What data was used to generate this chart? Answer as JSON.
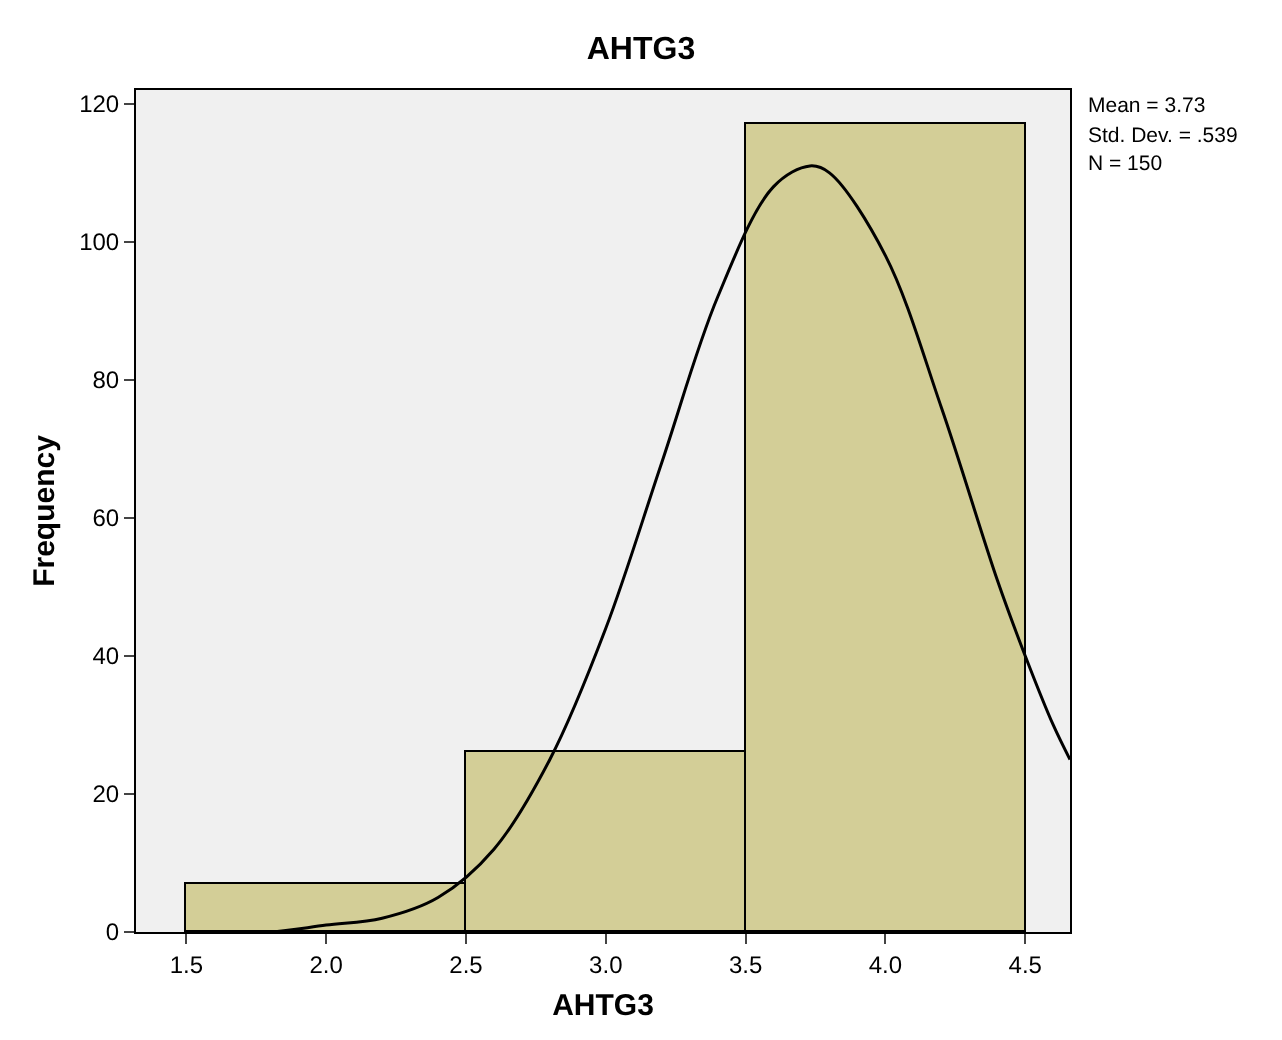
{
  "chart_data": {
    "type": "histogram",
    "title": "AHTG3",
    "xlabel": "AHTG3",
    "ylabel": "Frequency",
    "bins": [
      1.5,
      2.5,
      3.5,
      4.5
    ],
    "series": [
      {
        "color": "#d3ce97",
        "values": [
          7,
          26,
          117
        ]
      },
      {
        "type": "line",
        "color": "#000000",
        "x": [
          1.5,
          1.6,
          1.8,
          2.0,
          2.2,
          2.4,
          2.6,
          2.8,
          3.0,
          3.2,
          3.4,
          3.6,
          3.73,
          3.8,
          4.0,
          4.2,
          4.4,
          4.5,
          4.6,
          4.66
        ],
        "values": [
          0,
          0,
          0,
          1,
          2,
          5,
          12,
          25,
          44,
          68,
          92,
          108,
          111,
          110,
          98,
          76,
          51,
          40,
          30,
          25
        ]
      }
    ],
    "xlim": [
      1.32,
      4.66
    ],
    "ylim": [
      0,
      122
    ],
    "xticks": [
      {
        "value": 1.5,
        "label": "1.5"
      },
      {
        "value": 2,
        "label": "2.0"
      },
      {
        "value": 2.5,
        "label": "2.5"
      },
      {
        "value": 3,
        "label": "3.0"
      },
      {
        "value": 3.5,
        "label": "3.5"
      },
      {
        "value": 4,
        "label": "4.0"
      },
      {
        "value": 4.5,
        "label": "4.5"
      }
    ],
    "yticks": [
      0,
      20,
      40,
      60,
      80,
      100,
      120
    ],
    "grid": false,
    "marker": "none",
    "line_style": "solid",
    "annotations": [
      "Mean = 3.73",
      "Std. Dev. = .539",
      "N = 150"
    ]
  }
}
